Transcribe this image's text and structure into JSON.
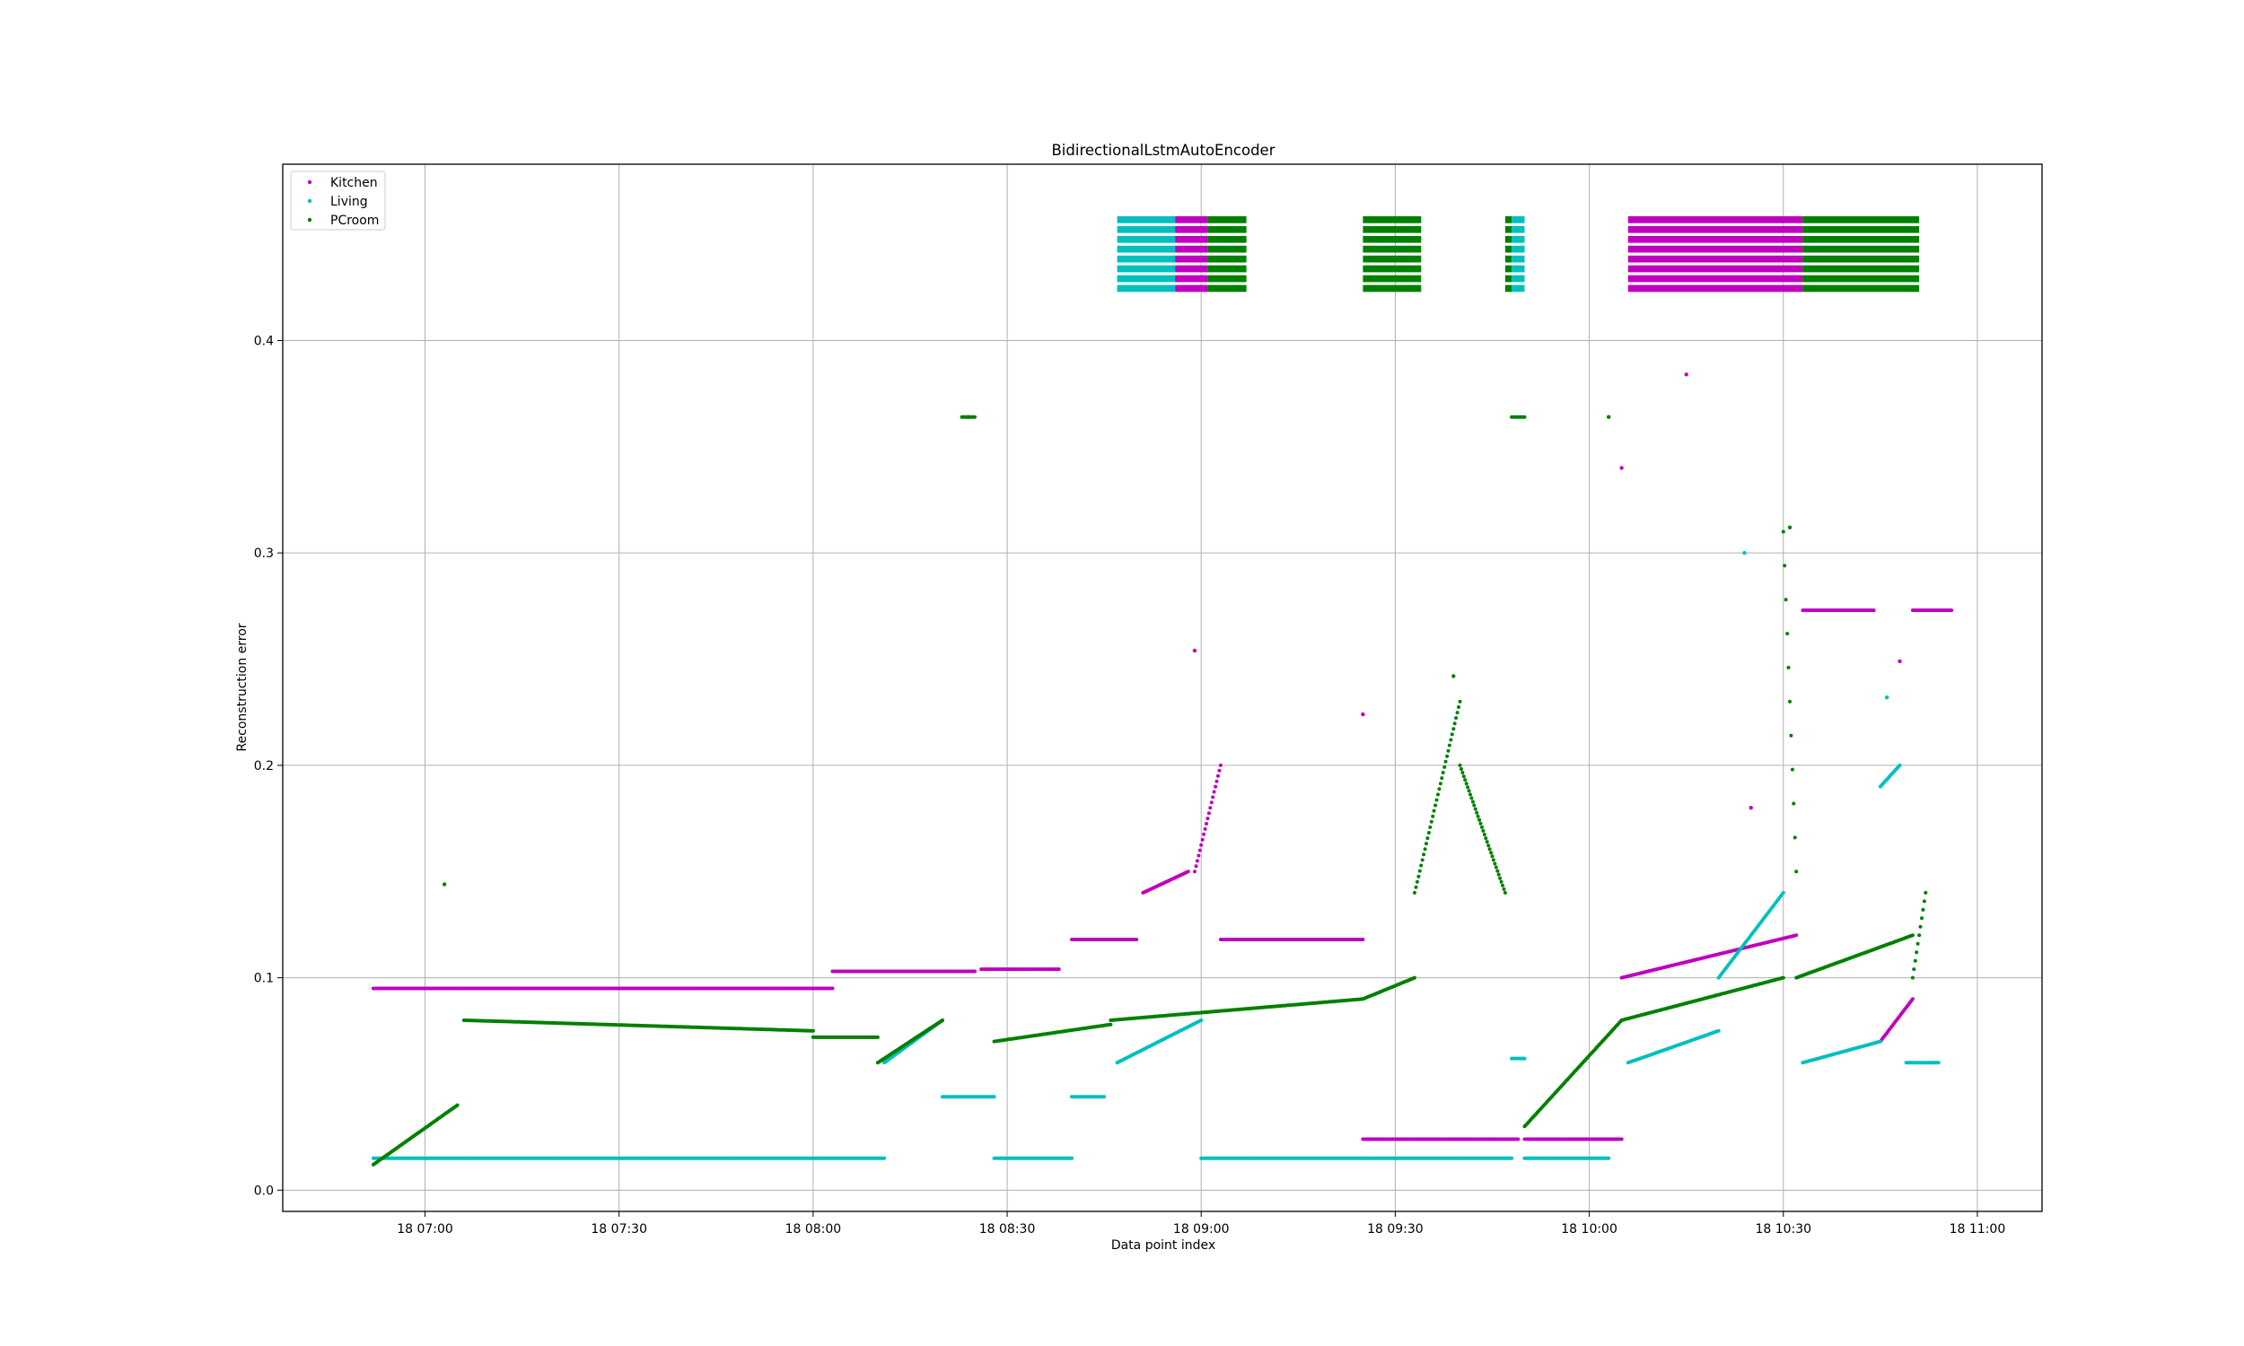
{
  "chart_data": {
    "type": "scatter",
    "title": "BidirectionalLstmAutoEncoder",
    "xlabel": "Data point index",
    "ylabel": "Reconstruction error",
    "xlim": [
      "18 06:38",
      "18 11:10"
    ],
    "ylim": [
      -0.01,
      0.483
    ],
    "x_ticks": [
      "18 07:00",
      "18 07:30",
      "18 08:00",
      "18 08:30",
      "18 09:00",
      "18 09:30",
      "18 10:00",
      "18 10:30",
      "18 11:00"
    ],
    "y_ticks": [
      "0.0",
      "0.1",
      "0.2",
      "0.3",
      "0.4"
    ],
    "grid": true,
    "legend": {
      "placement": "top-left",
      "entries": [
        "Kitchen",
        "Living",
        "PCroom"
      ]
    },
    "colors": {
      "Kitchen": "#bf00bf",
      "Living": "#00bfbf",
      "PCroom": "#008000"
    },
    "series": [
      {
        "name": "Kitchen",
        "segments": [
          {
            "x": [
              "18 06:52",
              "18 08:03"
            ],
            "y": [
              0.095,
              0.095
            ]
          },
          {
            "x": [
              "18 08:03",
              "18 08:25"
            ],
            "y": [
              0.103,
              0.103
            ]
          },
          {
            "x": [
              "18 08:26",
              "18 08:38"
            ],
            "y": [
              0.104,
              0.104
            ]
          },
          {
            "x": [
              "18 08:40",
              "18 08:50"
            ],
            "y": [
              0.118,
              0.118
            ]
          },
          {
            "x": [
              "18 08:51",
              "18 08:58"
            ],
            "y": [
              0.14,
              0.15
            ]
          },
          {
            "x": [
              "18 08:59",
              "18 09:03"
            ],
            "y": [
              0.15,
              0.2
            ]
          },
          {
            "x": [
              "18 09:03",
              "18 09:25"
            ],
            "y": [
              0.118,
              0.118
            ]
          },
          {
            "x": [
              "18 09:25",
              "18 09:49"
            ],
            "y": [
              0.024,
              0.024
            ]
          },
          {
            "x": [
              "18 09:50",
              "18 10:05"
            ],
            "y": [
              0.024,
              0.024
            ]
          },
          {
            "x": [
              "18 10:05",
              "18 10:32"
            ],
            "y": [
              0.1,
              0.12
            ]
          },
          {
            "x": [
              "18 10:33",
              "18 10:44"
            ],
            "y": [
              0.273,
              0.273
            ]
          },
          {
            "x": [
              "18 10:45",
              "18 10:50"
            ],
            "y": [
              0.07,
              0.09
            ]
          },
          {
            "x": [
              "18 10:50",
              "18 10:56"
            ],
            "y": [
              0.273,
              0.273
            ]
          }
        ],
        "spikes": [
          {
            "x": "18 08:59",
            "y": 0.254
          },
          {
            "x": "18 09:25",
            "y": 0.224
          },
          {
            "x": "18 10:05",
            "y": 0.34
          },
          {
            "x": "18 10:15",
            "y": 0.384
          },
          {
            "x": "18 10:25",
            "y": 0.18
          },
          {
            "x": "18 10:48",
            "y": 0.249
          }
        ]
      },
      {
        "name": "Living",
        "segments": [
          {
            "x": [
              "18 06:52",
              "18 08:11"
            ],
            "y": [
              0.015,
              0.015
            ]
          },
          {
            "x": [
              "18 08:11",
              "18 08:20"
            ],
            "y": [
              0.06,
              0.08
            ]
          },
          {
            "x": [
              "18 08:20",
              "18 08:28"
            ],
            "y": [
              0.044,
              0.044
            ]
          },
          {
            "x": [
              "18 08:28",
              "18 08:40"
            ],
            "y": [
              0.015,
              0.015
            ]
          },
          {
            "x": [
              "18 08:40",
              "18 08:45"
            ],
            "y": [
              0.044,
              0.044
            ]
          },
          {
            "x": [
              "18 08:47",
              "18 09:00"
            ],
            "y": [
              0.06,
              0.08
            ]
          },
          {
            "x": [
              "18 09:00",
              "18 09:25"
            ],
            "y": [
              0.015,
              0.015
            ]
          },
          {
            "x": [
              "18 09:25",
              "18 09:48"
            ],
            "y": [
              0.015,
              0.015
            ]
          },
          {
            "x": [
              "18 09:48",
              "18 09:50"
            ],
            "y": [
              0.062,
              0.062
            ]
          },
          {
            "x": [
              "18 09:50",
              "18 10:03"
            ],
            "y": [
              0.015,
              0.015
            ]
          },
          {
            "x": [
              "18 10:06",
              "18 10:20"
            ],
            "y": [
              0.06,
              0.075
            ]
          },
          {
            "x": [
              "18 10:20",
              "18 10:30"
            ],
            "y": [
              0.1,
              0.14
            ]
          },
          {
            "x": [
              "18 10:33",
              "18 10:45"
            ],
            "y": [
              0.06,
              0.07
            ]
          },
          {
            "x": [
              "18 10:45",
              "18 10:48"
            ],
            "y": [
              0.19,
              0.2
            ]
          },
          {
            "x": [
              "18 10:49",
              "18 10:54"
            ],
            "y": [
              0.06,
              0.06
            ]
          }
        ],
        "spikes": [
          {
            "x": "18 10:24",
            "y": 0.3
          },
          {
            "x": "18 10:46",
            "y": 0.232
          }
        ]
      },
      {
        "name": "PCroom",
        "segments": [
          {
            "x": [
              "18 06:52",
              "18 07:05"
            ],
            "y": [
              0.012,
              0.04
            ]
          },
          {
            "x": [
              "18 07:06",
              "18 08:00"
            ],
            "y": [
              0.08,
              0.075
            ]
          },
          {
            "x": [
              "18 08:00",
              "18 08:10"
            ],
            "y": [
              0.072,
              0.072
            ]
          },
          {
            "x": [
              "18 08:10",
              "18 08:20"
            ],
            "y": [
              0.06,
              0.08
            ]
          },
          {
            "x": [
              "18 08:23",
              "18 08:25"
            ],
            "y": [
              0.364,
              0.364
            ]
          },
          {
            "x": [
              "18 08:28",
              "18 08:46"
            ],
            "y": [
              0.07,
              0.078
            ]
          },
          {
            "x": [
              "18 08:46",
              "18 09:25"
            ],
            "y": [
              0.08,
              0.09
            ]
          },
          {
            "x": [
              "18 09:25",
              "18 09:33"
            ],
            "y": [
              0.09,
              0.1
            ]
          },
          {
            "x": [
              "18 09:33",
              "18 09:40"
            ],
            "y": [
              0.14,
              0.23
            ]
          },
          {
            "x": [
              "18 09:40",
              "18 09:47"
            ],
            "y": [
              0.2,
              0.14
            ]
          },
          {
            "x": [
              "18 09:48",
              "18 09:50"
            ],
            "y": [
              0.364,
              0.364
            ]
          },
          {
            "x": [
              "18 09:50",
              "18 10:05"
            ],
            "y": [
              0.03,
              0.08
            ]
          },
          {
            "x": [
              "18 10:05",
              "18 10:30"
            ],
            "y": [
              0.08,
              0.1
            ]
          },
          {
            "x": [
              "18 10:30",
              "18 10:32"
            ],
            "y": [
              0.31,
              0.15
            ]
          },
          {
            "x": [
              "18 10:32",
              "18 10:50"
            ],
            "y": [
              0.1,
              0.12
            ]
          },
          {
            "x": [
              "18 10:50",
              "18 10:52"
            ],
            "y": [
              0.1,
              0.14
            ]
          }
        ],
        "spikes": [
          {
            "x": "18 07:03",
            "y": 0.144
          },
          {
            "x": "18 08:24",
            "y": 0.364
          },
          {
            "x": "18 09:39",
            "y": 0.242
          },
          {
            "x": "18 10:03",
            "y": 0.364
          },
          {
            "x": "18 10:31",
            "y": 0.312
          }
        ]
      }
    ],
    "alarm_bands": [
      {
        "x": [
          "18 08:47",
          "18 08:56"
        ],
        "series": "Living"
      },
      {
        "x": [
          "18 08:56",
          "18 09:01"
        ],
        "series": "Kitchen"
      },
      {
        "x": [
          "18 09:01",
          "18 09:07"
        ],
        "series": "PCroom"
      },
      {
        "x": [
          "18 09:25",
          "18 09:34"
        ],
        "series": "PCroom"
      },
      {
        "x": [
          "18 09:47",
          "18 09:48"
        ],
        "series": "PCroom"
      },
      {
        "x": [
          "18 09:48",
          "18 09:50"
        ],
        "series": "Living"
      },
      {
        "x": [
          "18 10:06",
          "18 10:33"
        ],
        "series": "Kitchen"
      },
      {
        "x": [
          "18 10:33",
          "18 10:51"
        ],
        "series": "PCroom"
      }
    ],
    "alarm_band_y": [
      0.4215,
      0.4585
    ],
    "alarm_band_stripes": 8
  }
}
